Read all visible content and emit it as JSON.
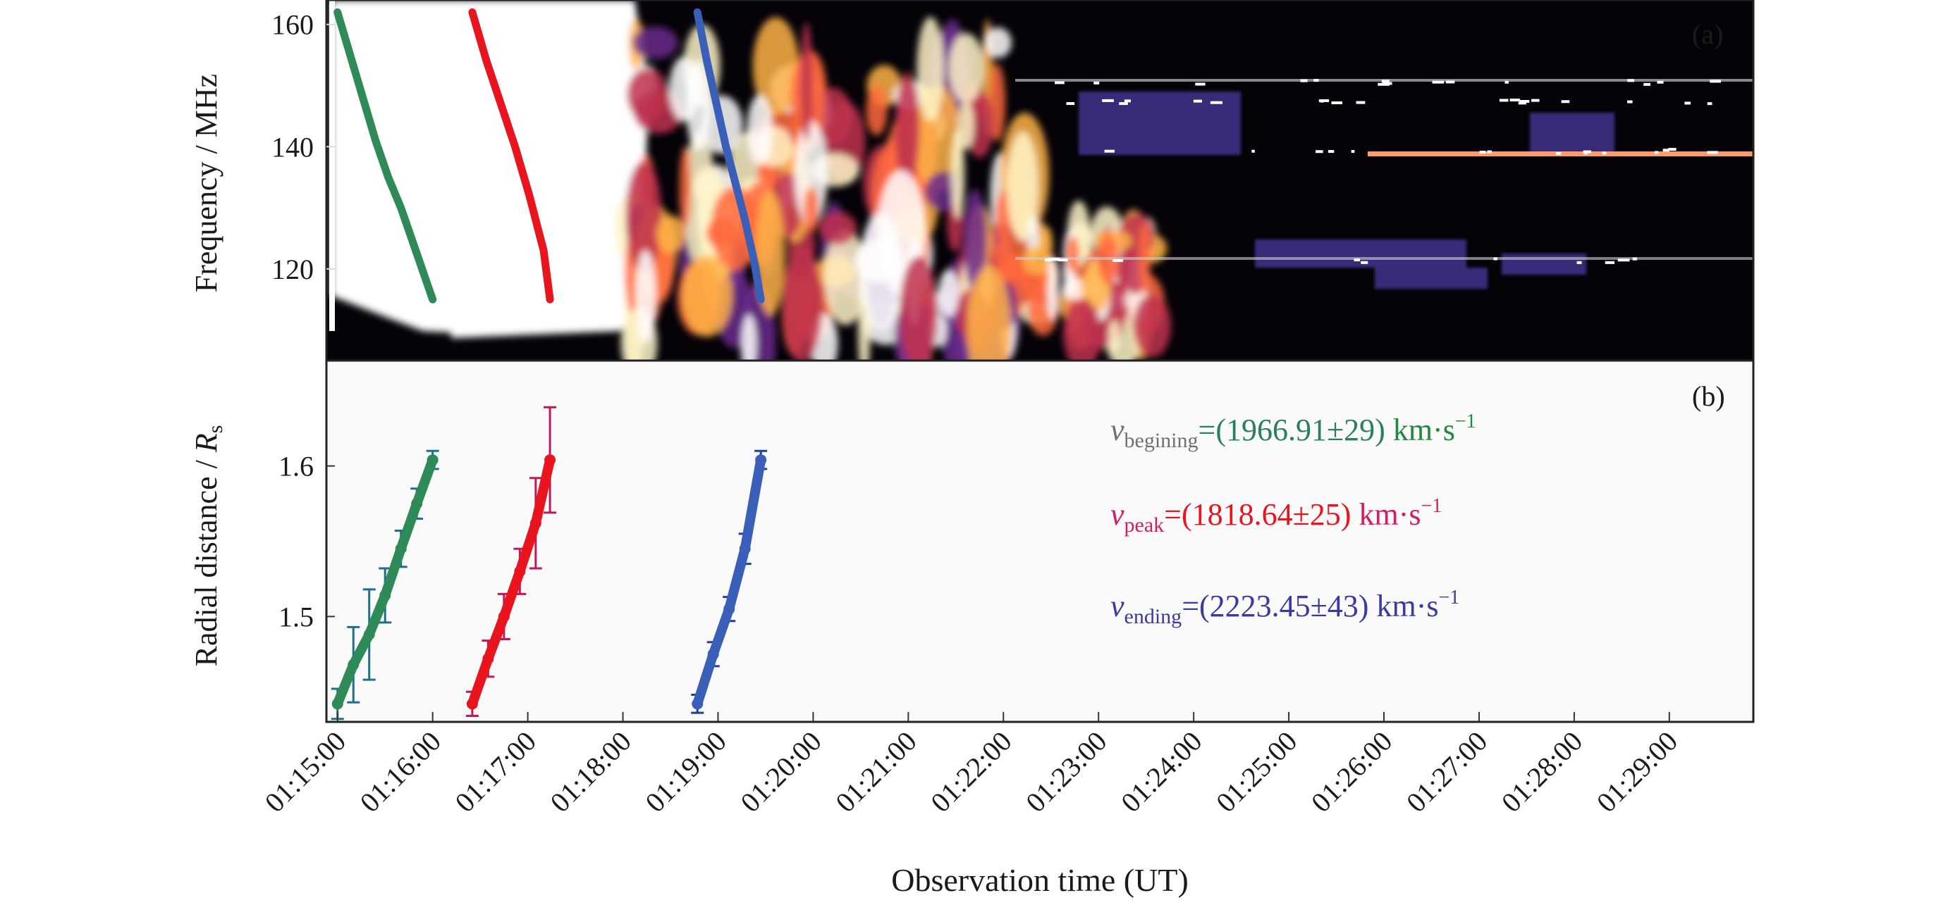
{
  "chart_data": [
    {
      "panel": "a",
      "type": "heatmap",
      "panel_label": "(a)",
      "ylabel": "Frequency / MHz",
      "xlim_minutes_after": "01:15:00",
      "xlim": [
        "01:14:53",
        "01:29:53"
      ],
      "ylim": [
        105,
        164
      ],
      "yticks": [
        120,
        140,
        160
      ],
      "colormap": "black-purple-red-yellow-white",
      "overlay_series": [
        {
          "name": "",
          "color": "#2e8b57",
          "x": [
            "01:15:00",
            "01:15:08",
            "01:15:16",
            "01:15:24",
            "01:15:32",
            "01:15:40",
            "01:15:48",
            "01:15:56",
            "01:16:00"
          ],
          "y": [
            162,
            155,
            148,
            141,
            135,
            130,
            124,
            118,
            115
          ]
        },
        {
          "name": "",
          "color": "#e8141e",
          "x": [
            "01:16:25",
            "01:16:34",
            "01:16:43",
            "01:16:52",
            "01:17:01",
            "01:17:10",
            "01:17:14"
          ],
          "y": [
            162,
            154,
            147,
            140,
            132,
            123,
            115
          ]
        },
        {
          "name": "",
          "color": "#3a5fb8",
          "x": [
            "01:18:47",
            "01:18:53",
            "01:18:59",
            "01:19:05",
            "01:19:11",
            "01:19:17",
            "01:19:23",
            "01:19:27"
          ],
          "y": [
            162,
            154,
            147,
            140,
            134,
            128,
            121,
            115
          ]
        }
      ]
    },
    {
      "panel": "b",
      "type": "scatter",
      "panel_label": "(b)",
      "ylabel": "Radial distance / ",
      "ylabel_symbol": "R",
      "ylabel_subscript": "s",
      "xlabel": "Observation time (UT)",
      "ylim": [
        1.43,
        1.67
      ],
      "yticks": [
        1.5,
        1.6
      ],
      "xticks": [
        "01:15:00",
        "01:16:00",
        "01:17:00",
        "01:18:00",
        "01:19:00",
        "01:20:00",
        "01:21:00",
        "01:22:00",
        "01:23:00",
        "01:24:00",
        "01:25:00",
        "01:26:00",
        "01:27:00",
        "01:28:00",
        "01:29:00"
      ],
      "series": [
        {
          "name": "",
          "color": "#2e8b57",
          "errorbar_color": "#1f6f8b",
          "x": [
            "01:15:00",
            "01:15:10",
            "01:15:20",
            "01:15:30",
            "01:15:40",
            "01:15:50",
            "01:16:00"
          ],
          "y": [
            1.442,
            1.468,
            1.488,
            1.514,
            1.545,
            1.575,
            1.604
          ],
          "errors": [
            0.01,
            0.025,
            0.03,
            0.018,
            0.012,
            0.01,
            0.006
          ]
        },
        {
          "name": "",
          "color": "#e8141e",
          "errorbar_color": "#c2185b",
          "x": [
            "01:16:25",
            "01:16:35",
            "01:16:45",
            "01:16:55",
            "01:17:05",
            "01:17:14"
          ],
          "y": [
            1.442,
            1.472,
            1.5,
            1.53,
            1.562,
            1.604
          ],
          "errors": [
            0.008,
            0.012,
            0.015,
            0.015,
            0.03,
            0.035
          ]
        },
        {
          "name": "",
          "color": "#3a5fb8",
          "errorbar_color": "#1f3f9b",
          "x": [
            "01:18:47",
            "01:18:57",
            "01:19:07",
            "01:19:17",
            "01:19:27"
          ],
          "y": [
            1.442,
            1.475,
            1.505,
            1.545,
            1.604
          ],
          "errors": [
            0.006,
            0.008,
            0.008,
            0.01,
            0.006
          ]
        }
      ],
      "annotations": [
        {
          "symbol": "v",
          "subscript": "begining",
          "text": "=(1966.91±29) ",
          "unit": "km·s",
          "unit_sup": "−1",
          "symbol_color": "#707070",
          "text_color": "#2a7f5f",
          "unit_color": "#1f8a3a"
        },
        {
          "symbol": "v",
          "subscript": "peak",
          "text": "=(1818.64±25) ",
          "unit": "km·s",
          "unit_sup": "−1",
          "symbol_color": "#d81b60",
          "text_color": "#e8141e",
          "unit_color": "#d81b60"
        },
        {
          "symbol": "v",
          "subscript": "ending",
          "text": "=(2223.45±43) ",
          "unit": "km·s",
          "unit_sup": "−1",
          "symbol_color": "#3a3aa0",
          "text_color": "#3a3aa0",
          "unit_color": "#3a3aa0"
        }
      ]
    }
  ]
}
